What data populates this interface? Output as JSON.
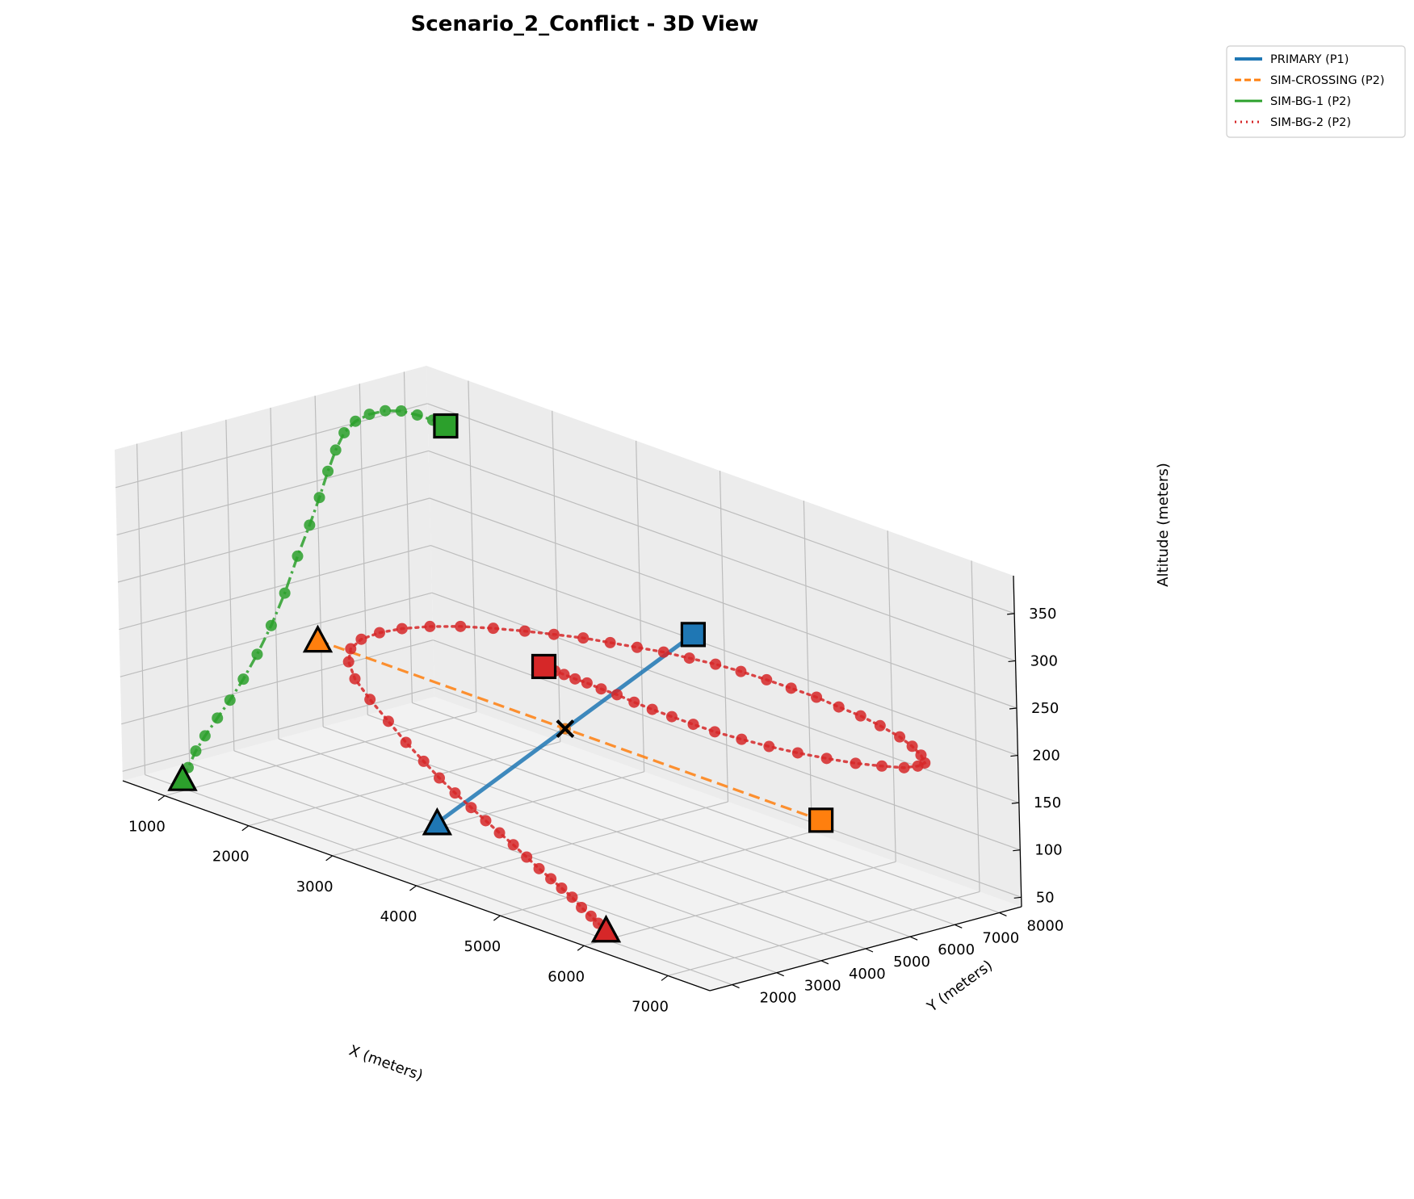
{
  "chart_data": {
    "type": "line3d",
    "title": "Scenario_2_Conflict - 3D View",
    "xlabel": "X (meters)",
    "ylabel": "Y (meters)",
    "zlabel": "Altitude (meters)",
    "xlim": [
      500,
      7500
    ],
    "ylim": [
      1500,
      8500
    ],
    "zlim": [
      40,
      390
    ],
    "xticks": [
      1000,
      2000,
      3000,
      4000,
      5000,
      6000,
      7000
    ],
    "yticks": [
      2000,
      3000,
      4000,
      5000,
      6000,
      7000,
      8000
    ],
    "zticks": [
      50,
      100,
      150,
      200,
      250,
      300,
      350
    ],
    "grid": true,
    "legend_position": "top-right outside",
    "conflict_marker": {
      "x": 3950,
      "y": 5000,
      "z": 160
    },
    "series": [
      {
        "name": "PRIMARY (P1)",
        "color": "#1f77b4",
        "style": "solid",
        "points_marked": false,
        "x": [
          4000,
          3950,
          3900
        ],
        "y": [
          2000,
          5000,
          8000
        ],
        "z": [
          100,
          160,
          220
        ]
      },
      {
        "name": "SIM-CROSSING (P2)",
        "color": "#ff7f0e",
        "style": "dashed",
        "points_marked": false,
        "x": [
          1000,
          3950,
          7000
        ],
        "y": [
          5000,
          5000,
          5000
        ],
        "z": [
          160,
          160,
          160
        ]
      },
      {
        "name": "SIM-BG-1 (P2)",
        "color": "#2ca02c",
        "style": "dashdot",
        "points_marked": true,
        "x": [
          950,
          946,
          942,
          937,
          933,
          929,
          924,
          920,
          916,
          912,
          908,
          904,
          901,
          898,
          896,
          900,
          920,
          950,
          1000,
          1050,
          1100,
          1150,
          1200
        ],
        "y": [
          2000,
          2139,
          2326,
          2549,
          2843,
          3140,
          3459,
          3789,
          4126,
          4453,
          4766,
          5058,
          5298,
          5507,
          5696,
          5887,
          6108,
          6369,
          6630,
          6894,
          7158,
          7407,
          7600
        ],
        "z": [
          50,
          60,
          75,
          88,
          103,
          118,
          136,
          158,
          184,
          214,
          249,
          278,
          304,
          329,
          349,
          365,
          375,
          380,
          382,
          380,
          374,
          367,
          360
        ]
      },
      {
        "name": "SIM-BG-2 (P2)",
        "color": "#d62728",
        "style": "dotted",
        "points_marked": true,
        "x": [
          6000,
          5900,
          5800,
          5659,
          5524,
          5370,
          5208,
          5028,
          4835,
          4623,
          4399,
          4169,
          3917,
          3630,
          3336,
          3030,
          2669,
          2269,
          1850,
          1470,
          1205,
          1059,
          1022,
          1082,
          1210,
          1403,
          1649,
          1943,
          2249,
          2550,
          2859,
          3158,
          3459,
          3757,
          4058,
          4362,
          4666,
          4974,
          5278,
          5597,
          5897,
          6197,
          6483,
          6778,
          7003,
          7197,
          7349,
          7372,
          7315,
          7151,
          6928,
          6651,
          6361,
          6056,
          5742,
          5426,
          5156,
          4882,
          4625,
          4378,
          4147,
          3938,
          3752,
          3596,
          3456,
          3343,
          3200
        ],
        "y": [
          2000,
          2016,
          2042,
          2097,
          2144,
          2200,
          2265,
          2342,
          2429,
          2531,
          2645,
          2771,
          2920,
          3102,
          3304,
          3532,
          3816,
          4178,
          4556,
          4936,
          5296,
          5621,
          5931,
          6230,
          6496,
          6762,
          6988,
          7172,
          7308,
          7396,
          7475,
          7520,
          7560,
          7596,
          7609,
          7626,
          7623,
          7621,
          7600,
          7569,
          7505,
          7431,
          7329,
          7213,
          7070,
          6901,
          6702,
          6500,
          6299,
          6107,
          5937,
          5807,
          5703,
          5633,
          5606,
          5598,
          5623,
          5657,
          5701,
          5759,
          5809,
          5847,
          5879,
          5905,
          5920,
          5931,
          5950
        ],
        "z": [
          50,
          54,
          58,
          62,
          68,
          72,
          76,
          80,
          85,
          90,
          94,
          98,
          102,
          106,
          110,
          115,
          120,
          125,
          130,
          135,
          140,
          145,
          150,
          155,
          160,
          165,
          170,
          175,
          180,
          185,
          190,
          194,
          198,
          202,
          205,
          208,
          210,
          211,
          212,
          213,
          213,
          214,
          214,
          213,
          212,
          211,
          210,
          210,
          209,
          208,
          206,
          204,
          202,
          200,
          198,
          196,
          195,
          194,
          193,
          192,
          192,
          191,
          191,
          190,
          190,
          190,
          190
        ]
      }
    ]
  }
}
